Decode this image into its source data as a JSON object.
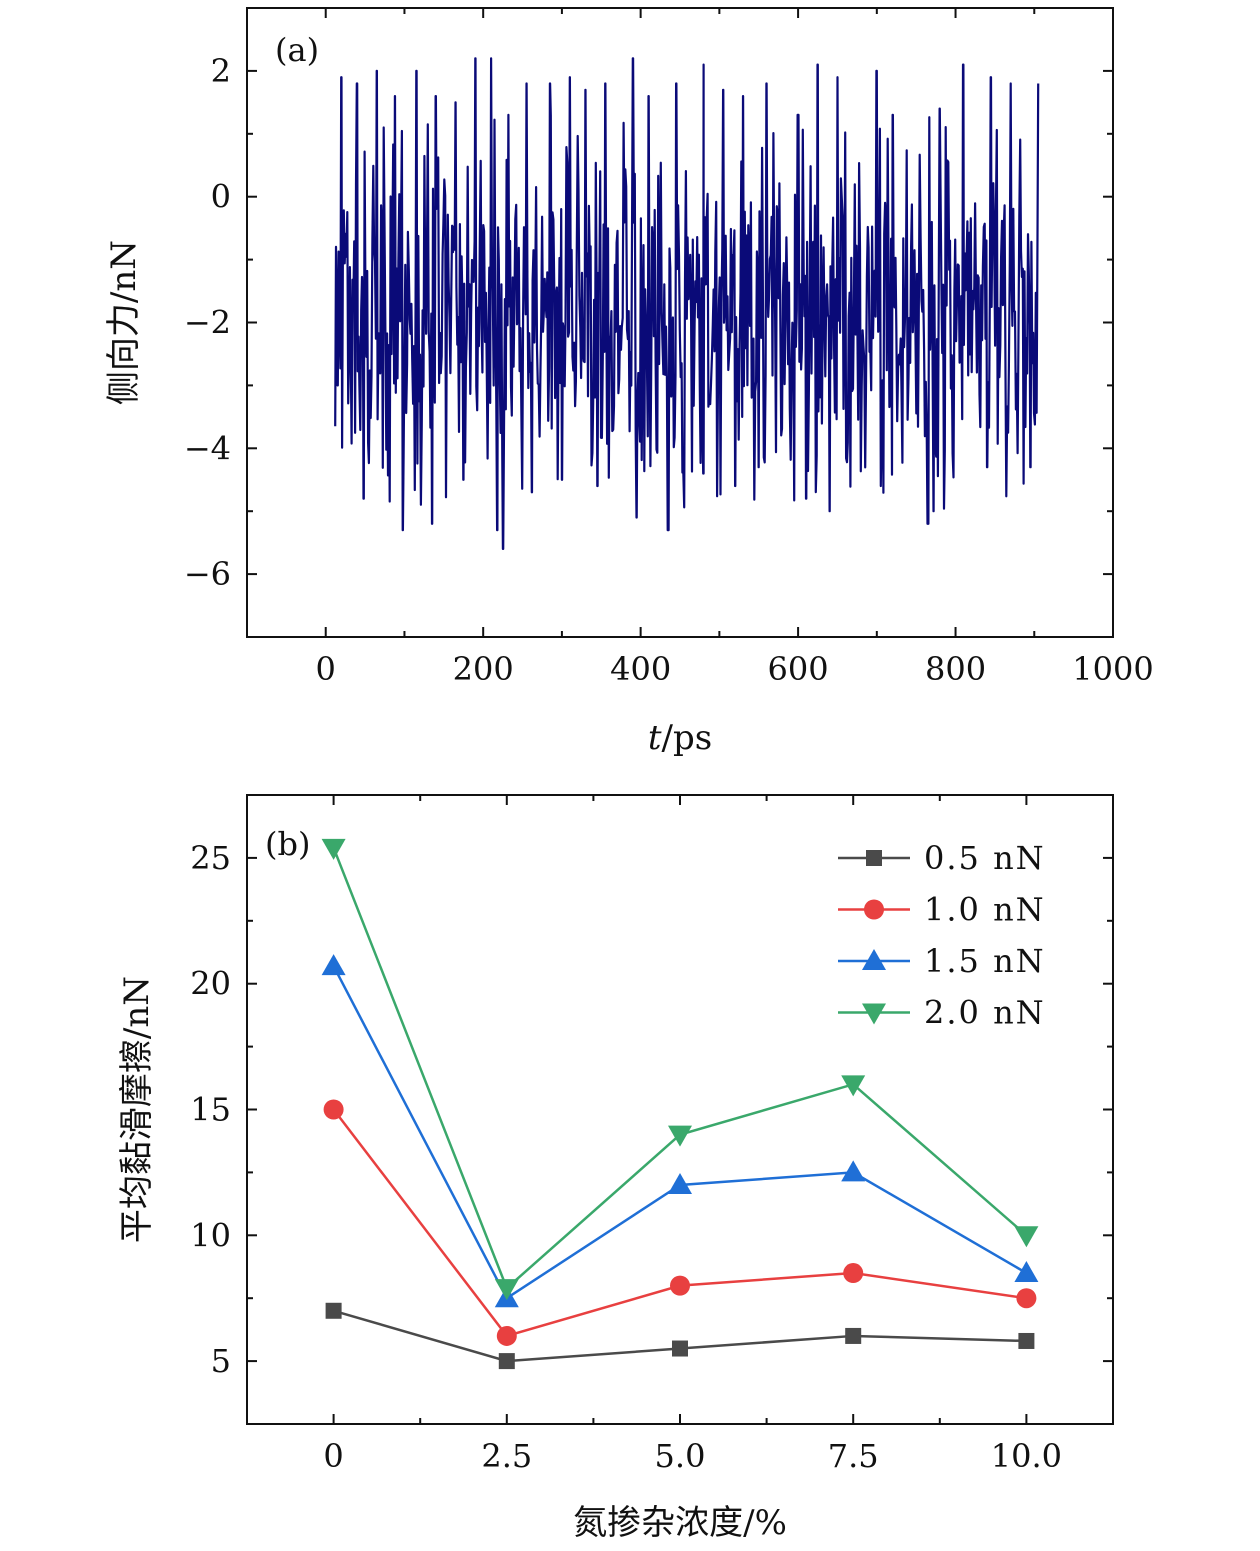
{
  "chart_data": [
    {
      "id": "a",
      "type": "line",
      "panel_label": "(a)",
      "title": "",
      "xlabel_italic": "t",
      "xlabel_rest": "/ps",
      "ylabel": "侧向力/nN",
      "xlim": [
        -100,
        1000
      ],
      "ylim": [
        -7,
        3
      ],
      "xticks": [
        0,
        200,
        400,
        600,
        800,
        1000
      ],
      "xtick_labels": [
        "0",
        "200",
        "400",
        "600",
        "800",
        "1000"
      ],
      "yticks": [
        2,
        0,
        -2,
        -4,
        -6
      ],
      "ytick_labels": [
        "2",
        "0",
        "−2",
        "−4",
        "−6"
      ],
      "line_color": "#0a0a78",
      "series": [
        {
          "name": "lateral force",
          "x_start": 12,
          "x_end": 905,
          "approx_mean": -1.9,
          "approx_min": -5.6,
          "approx_max": 2.2,
          "peaks": [
            [
              20,
              1.9
            ],
            [
              40,
              1.8
            ],
            [
              65,
              2.0
            ],
            [
              88,
              1.6
            ],
            [
              115,
              2.0
            ],
            [
              140,
              1.6
            ],
            [
              165,
              1.5
            ],
            [
              190,
              2.2
            ],
            [
              210,
              2.2
            ],
            [
              232,
              1.3
            ],
            [
              255,
              1.8
            ],
            [
              285,
              1.8
            ],
            [
              310,
              1.9
            ],
            [
              330,
              1.7
            ],
            [
              355,
              1.8
            ],
            [
              390,
              2.2
            ],
            [
              410,
              1.6
            ],
            [
              445,
              1.8
            ],
            [
              480,
              2.1
            ],
            [
              505,
              1.7
            ],
            [
              530,
              1.6
            ],
            [
              560,
              1.8
            ],
            [
              600,
              1.3
            ],
            [
              625,
              2.1
            ],
            [
              650,
              1.9
            ],
            [
              700,
              2.0
            ],
            [
              720,
              1.3
            ],
            [
              780,
              1.4
            ],
            [
              810,
              2.1
            ],
            [
              845,
              1.9
            ],
            [
              870,
              1.8
            ],
            [
              905,
              1.8
            ]
          ],
          "troughs": [
            [
              15,
              -3.0
            ],
            [
              48,
              -4.8
            ],
            [
              98,
              -5.3
            ],
            [
              135,
              -5.2
            ],
            [
              175,
              -4.5
            ],
            [
              218,
              -5.3
            ],
            [
              225,
              -5.6
            ],
            [
              262,
              -4.7
            ],
            [
              300,
              -4.5
            ],
            [
              345,
              -4.6
            ],
            [
              395,
              -5.1
            ],
            [
              435,
              -5.3
            ],
            [
              480,
              -4.4
            ],
            [
              520,
              -4.6
            ],
            [
              550,
              -4.3
            ],
            [
              610,
              -4.8
            ],
            [
              640,
              -5.0
            ],
            [
              705,
              -4.6
            ],
            [
              765,
              -5.2
            ],
            [
              772,
              -5.0
            ],
            [
              840,
              -4.3
            ],
            [
              895,
              -4.3
            ]
          ]
        }
      ]
    },
    {
      "id": "b",
      "type": "line",
      "panel_label": "(b)",
      "title": "",
      "xlabel": "氮掺杂浓度/%",
      "ylabel": "平均黏滑摩擦/nN",
      "xlim": [
        -1.25,
        11.25
      ],
      "ylim": [
        2.5,
        27.5
      ],
      "categories": [
        0,
        2.5,
        5.0,
        7.5,
        10.0
      ],
      "xtick_labels": [
        "0",
        "2.5",
        "5.0",
        "7.5",
        "10.0"
      ],
      "yticks": [
        5,
        10,
        15,
        20,
        25
      ],
      "ytick_labels": [
        "5",
        "10",
        "15",
        "20",
        "25"
      ],
      "legend_position": "top-right",
      "series": [
        {
          "name": "0.5 nN",
          "marker": "square",
          "color": "#4a4a4a",
          "values": [
            7.0,
            5.0,
            5.5,
            6.0,
            5.8
          ]
        },
        {
          "name": "1.0 nN",
          "marker": "circle",
          "color": "#e84040",
          "values": [
            15.0,
            6.0,
            8.0,
            8.5,
            7.5
          ]
        },
        {
          "name": "1.5 nN",
          "marker": "triangle-up",
          "color": "#1f6fd6",
          "values": [
            20.7,
            7.5,
            12.0,
            12.5,
            8.5
          ]
        },
        {
          "name": "2.0 nN",
          "marker": "triangle-down",
          "color": "#3aa86b",
          "values": [
            25.4,
            7.9,
            14.0,
            16.0,
            10.0
          ]
        }
      ]
    }
  ]
}
